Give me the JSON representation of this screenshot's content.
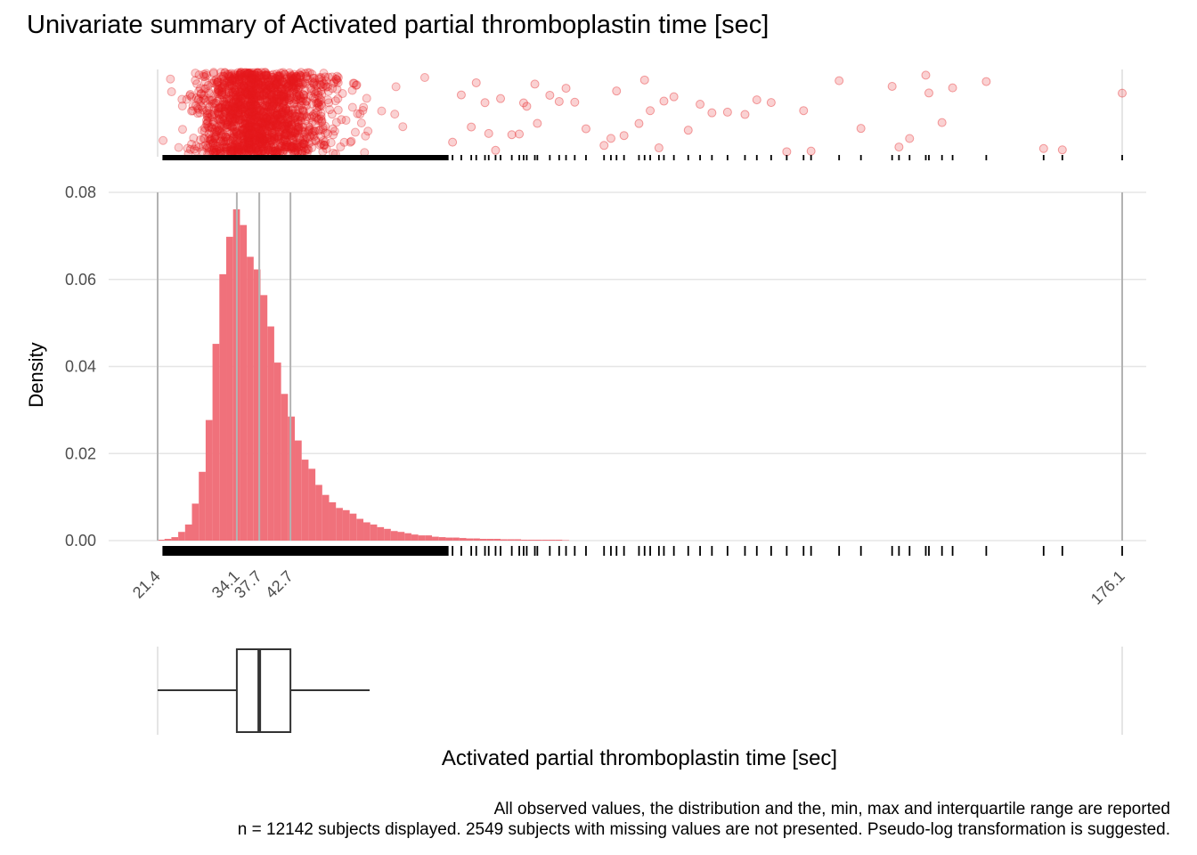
{
  "chart_data": {
    "type": "histogram",
    "title": "Univariate summary of Activated partial thromboplastin time [sec]",
    "xlabel": "Activated partial thromboplastin time [sec]",
    "ylabel": "Density",
    "caption_line1": "All observed values, the distribution and the, min, max and interquartile range are reported",
    "caption_line2": "n = 12142 subjects displayed. 2549 subjects with missing values are not presented. Pseudo-log transformation is suggested.",
    "xlim": [
      21.4,
      176.1
    ],
    "ylim": [
      0,
      0.08
    ],
    "y_ticks": [
      "0.00",
      "0.02",
      "0.04",
      "0.06",
      "0.08"
    ],
    "x_ticks": [
      "21.4",
      "34.1",
      "37.7",
      "42.7",
      "176.1"
    ],
    "summary": {
      "min": 21.4,
      "q1": 34.1,
      "median": 37.7,
      "q3": 42.7,
      "max": 176.1
    },
    "boxplot_whisker_high": 55.4,
    "bin_width": 1.1,
    "bins_start": 21.4,
    "densities": [
      0.0002,
      0.0004,
      0.0008,
      0.002,
      0.0037,
      0.0085,
      0.0158,
      0.0277,
      0.0452,
      0.0612,
      0.0698,
      0.0761,
      0.0725,
      0.0652,
      0.0623,
      0.0564,
      0.0492,
      0.0409,
      0.0337,
      0.0285,
      0.023,
      0.0186,
      0.0165,
      0.0128,
      0.0105,
      0.0088,
      0.0075,
      0.007,
      0.0062,
      0.005,
      0.0042,
      0.0037,
      0.0031,
      0.0027,
      0.0022,
      0.002,
      0.0017,
      0.0014,
      0.0012,
      0.0012,
      0.0009,
      0.0008,
      0.0007,
      0.0007,
      0.0006,
      0.0005,
      0.0005,
      0.0004,
      0.0004,
      0.0004,
      0.0003,
      0.0003,
      0.0003,
      0.0002,
      0.0002,
      0.0002,
      0.0002,
      0.0002,
      0.0002,
      0.0001
    ],
    "outlier_values": [
      68.7,
      70.1,
      71.7,
      72.5,
      73.9,
      74.5,
      75.6,
      76.4,
      78.2,
      79.4,
      80.1,
      80.6,
      81.9,
      82.3,
      84.3,
      85.8,
      86.9,
      88.3,
      90.1,
      93.0,
      94.1,
      95.0,
      96.2,
      98.6,
      99.5,
      100.4,
      101.8,
      102.6,
      104.2,
      106.5,
      108.4,
      110.3,
      112.8,
      115.6,
      117.5,
      119.8,
      122.3,
      125.0,
      126.2,
      130.7,
      134.2,
      139.2,
      140.3,
      142.0,
      144.6,
      145.1,
      147.2,
      148.9,
      154.3,
      163.5,
      166.5,
      176.1
    ],
    "point_color": "#e41a1c",
    "bar_color": "#f0717b",
    "guide_line_color": "#b3b3b3"
  }
}
